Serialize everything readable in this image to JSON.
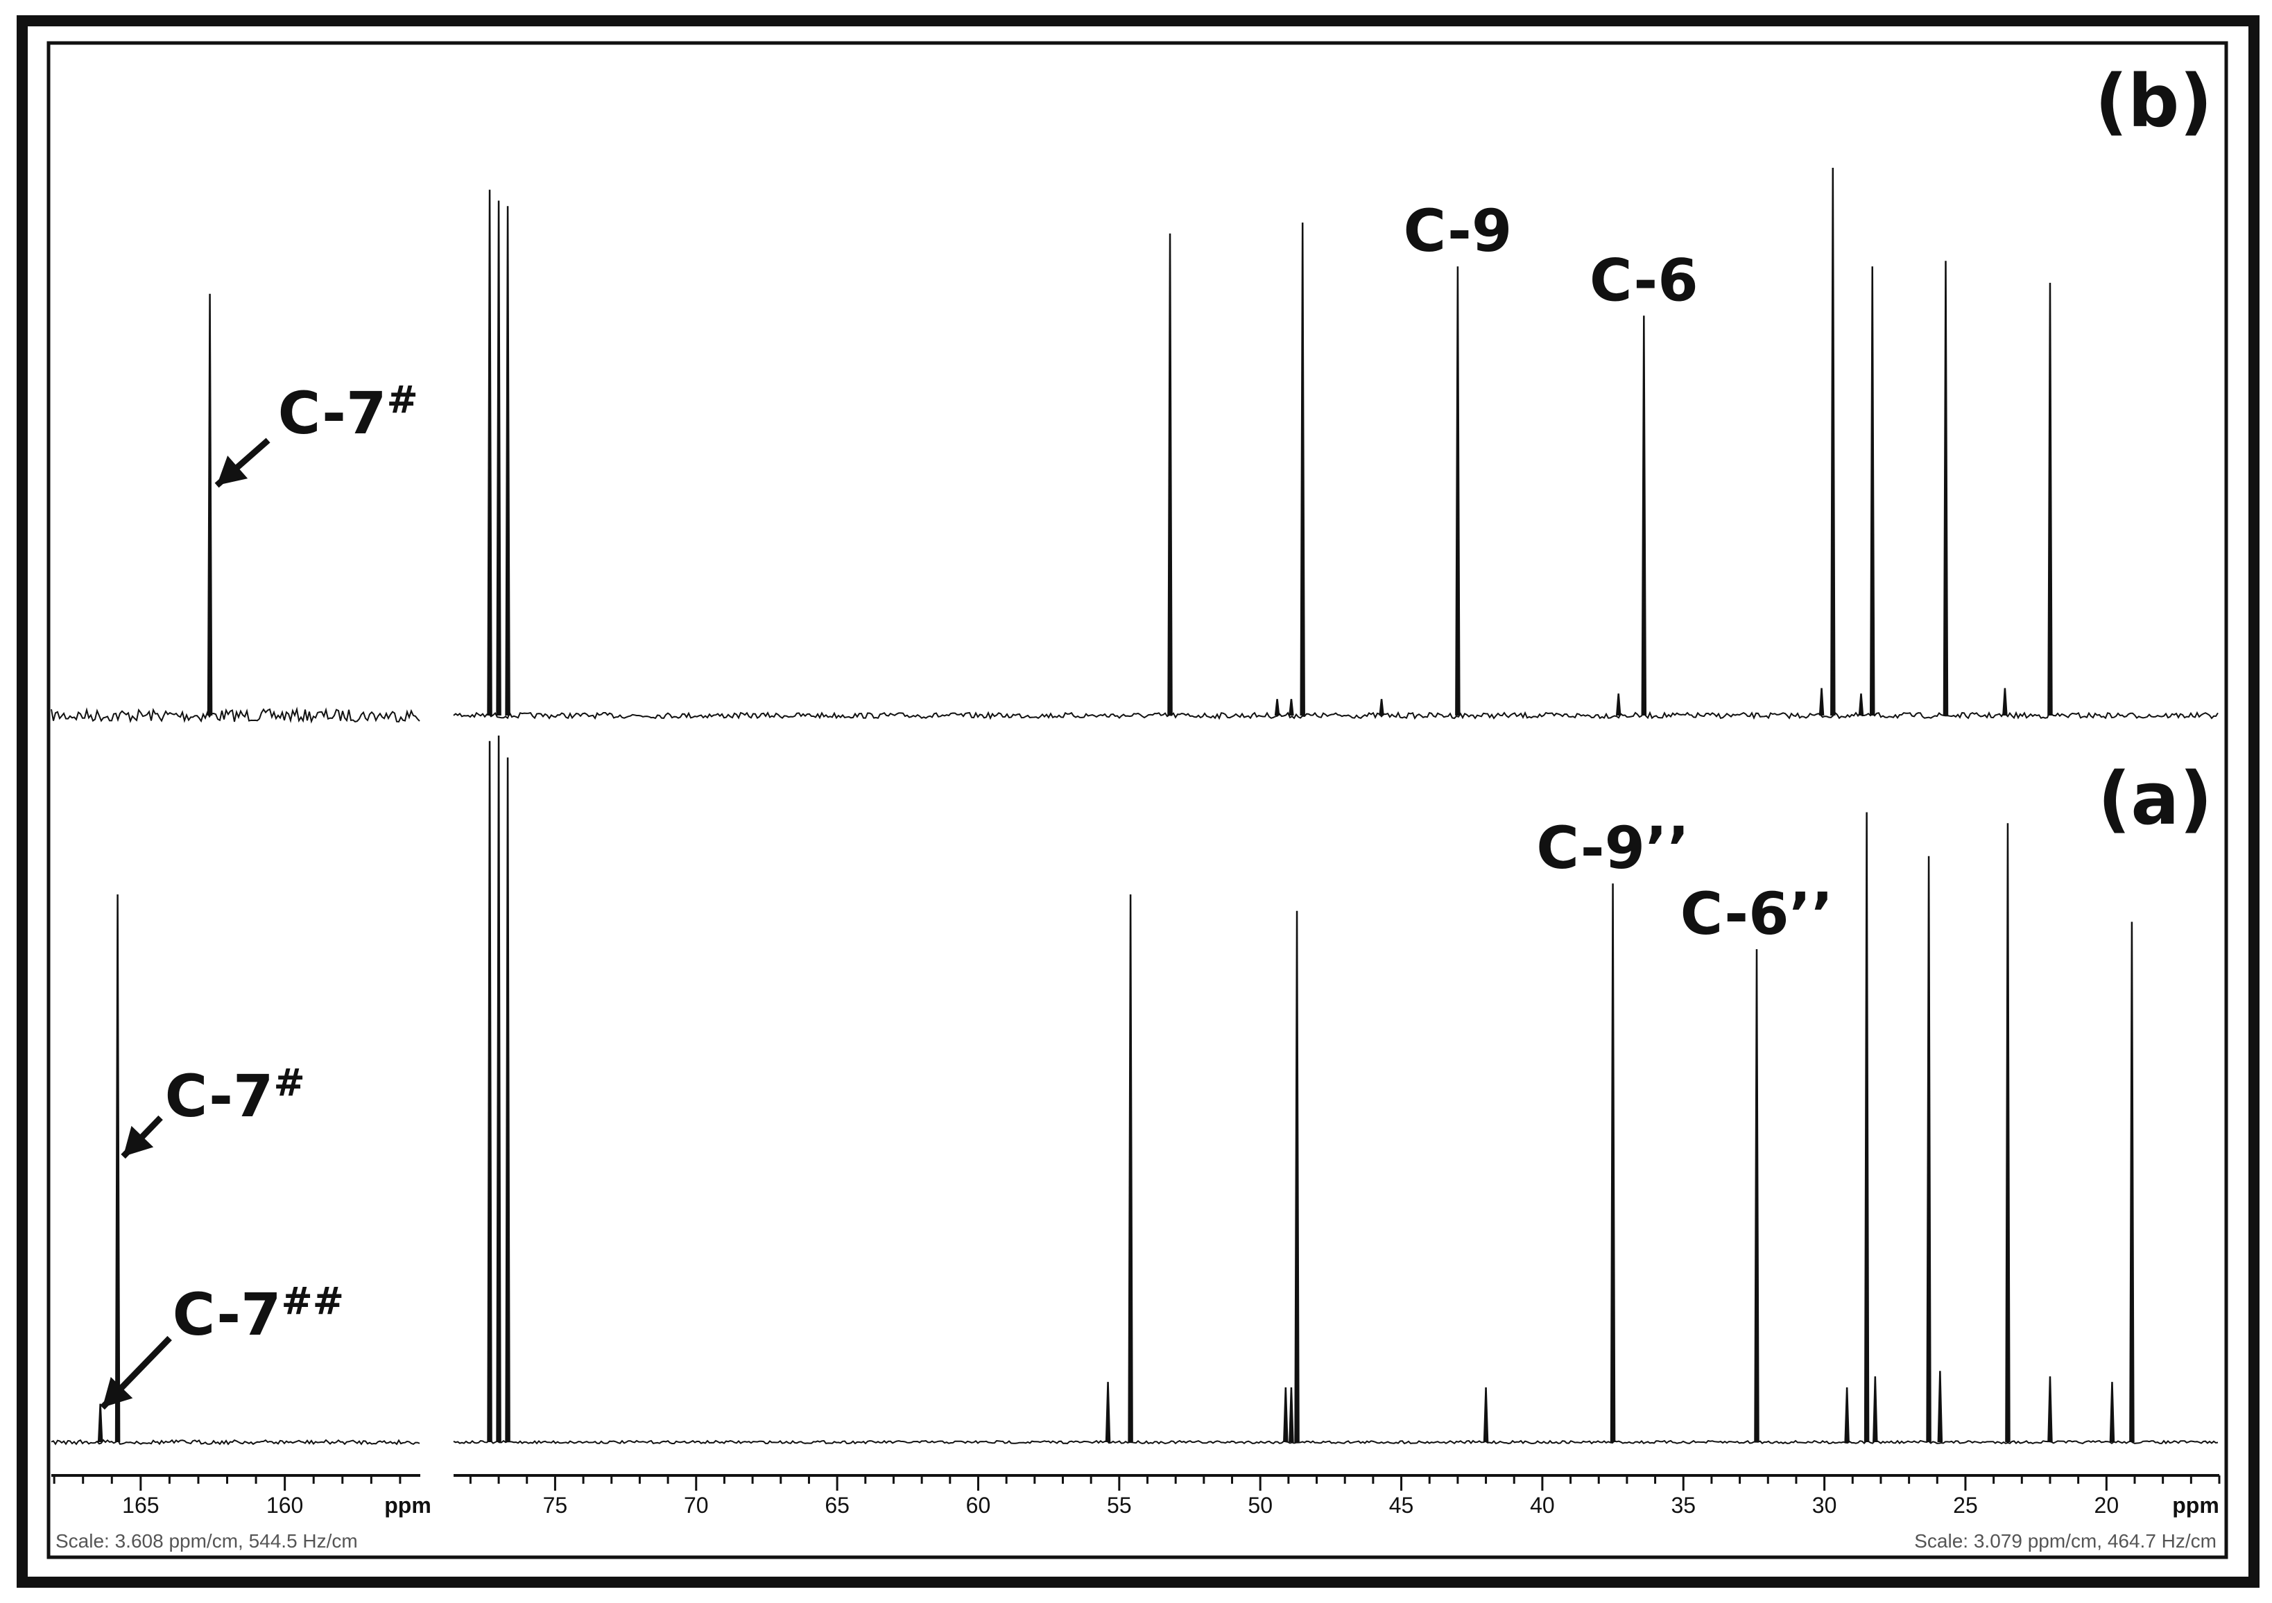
{
  "chart_data": {
    "type": "line",
    "description_units": "ppm",
    "panels": [
      {
        "id": "b",
        "label": "(b)",
        "peaks": [
          {
            "ppm": 162.6,
            "h": 0.77
          },
          {
            "ppm": 77.32,
            "h": 0.96
          },
          {
            "ppm": 77.0,
            "h": 0.94
          },
          {
            "ppm": 76.68,
            "h": 0.93
          },
          {
            "ppm": 53.2,
            "h": 0.88
          },
          {
            "ppm": 49.4,
            "h": 0.03
          },
          {
            "ppm": 48.9,
            "h": 0.03
          },
          {
            "ppm": 48.5,
            "h": 0.9
          },
          {
            "ppm": 45.7,
            "h": 0.03
          },
          {
            "ppm": 43.0,
            "h": 0.82
          },
          {
            "ppm": 37.3,
            "h": 0.04
          },
          {
            "ppm": 36.4,
            "h": 0.73
          },
          {
            "ppm": 30.1,
            "h": 0.05
          },
          {
            "ppm": 29.7,
            "h": 1.0
          },
          {
            "ppm": 28.7,
            "h": 0.04
          },
          {
            "ppm": 28.3,
            "h": 0.82
          },
          {
            "ppm": 25.7,
            "h": 0.83
          },
          {
            "ppm": 23.6,
            "h": 0.05
          },
          {
            "ppm": 22.0,
            "h": 0.79
          }
        ],
        "annotations": [
          {
            "text": "C-7",
            "sup": "#",
            "ppm": 162.6,
            "arrow": true
          },
          {
            "text": "C-9",
            "sup": "",
            "ppm": 43.0,
            "arrow": false
          },
          {
            "text": "C-6",
            "sup": "",
            "ppm": 36.4,
            "arrow": false
          }
        ]
      },
      {
        "id": "a",
        "label": "(a)",
        "peaks": [
          {
            "ppm": 166.4,
            "h": 0.07
          },
          {
            "ppm": 165.8,
            "h": 1.0
          },
          {
            "ppm": 77.32,
            "h": 1.28
          },
          {
            "ppm": 77.0,
            "h": 1.29
          },
          {
            "ppm": 76.68,
            "h": 1.25
          },
          {
            "ppm": 55.4,
            "h": 0.11
          },
          {
            "ppm": 54.6,
            "h": 1.0
          },
          {
            "ppm": 49.1,
            "h": 0.1
          },
          {
            "ppm": 48.9,
            "h": 0.1
          },
          {
            "ppm": 48.7,
            "h": 0.97
          },
          {
            "ppm": 42.0,
            "h": 0.1
          },
          {
            "ppm": 37.5,
            "h": 1.02
          },
          {
            "ppm": 32.4,
            "h": 0.9
          },
          {
            "ppm": 29.2,
            "h": 0.1
          },
          {
            "ppm": 28.5,
            "h": 1.15
          },
          {
            "ppm": 28.2,
            "h": 0.12
          },
          {
            "ppm": 26.3,
            "h": 1.07
          },
          {
            "ppm": 25.9,
            "h": 0.13
          },
          {
            "ppm": 23.5,
            "h": 1.13
          },
          {
            "ppm": 22.0,
            "h": 0.12
          },
          {
            "ppm": 19.8,
            "h": 0.11
          },
          {
            "ppm": 19.1,
            "h": 0.95
          }
        ],
        "annotations": [
          {
            "text": "C-7",
            "sup": "#",
            "ppm": 165.8,
            "arrow": true
          },
          {
            "text": "C-7",
            "sup": "##",
            "ppm": 166.4,
            "arrow": true
          },
          {
            "text": "C-9’’",
            "sup": "",
            "ppm": 37.5,
            "arrow": false
          },
          {
            "text": "C-6’’",
            "sup": "",
            "ppm": 32.4,
            "arrow": false
          }
        ]
      }
    ],
    "left_axis": {
      "ticks": [
        165,
        160
      ],
      "tick_labels": [
        "165",
        "160"
      ],
      "range": [
        168.1,
        155.3
      ],
      "unit_label": "ppm",
      "scale_text": "Scale: 3.608 ppm/cm, 544.5 Hz/cm"
    },
    "right_axis": {
      "ticks": [
        75,
        70,
        65,
        60,
        55,
        50,
        45,
        40,
        35,
        30,
        25,
        20
      ],
      "tick_labels": [
        "75",
        "70",
        "65",
        "60",
        "55",
        "50",
        "45",
        "40",
        "35",
        "30",
        "25",
        "20"
      ],
      "range": [
        78.6,
        16.0
      ],
      "unit_label": "ppm",
      "scale_text": "Scale: 3.079 ppm/cm, 464.7 Hz/cm"
    }
  }
}
